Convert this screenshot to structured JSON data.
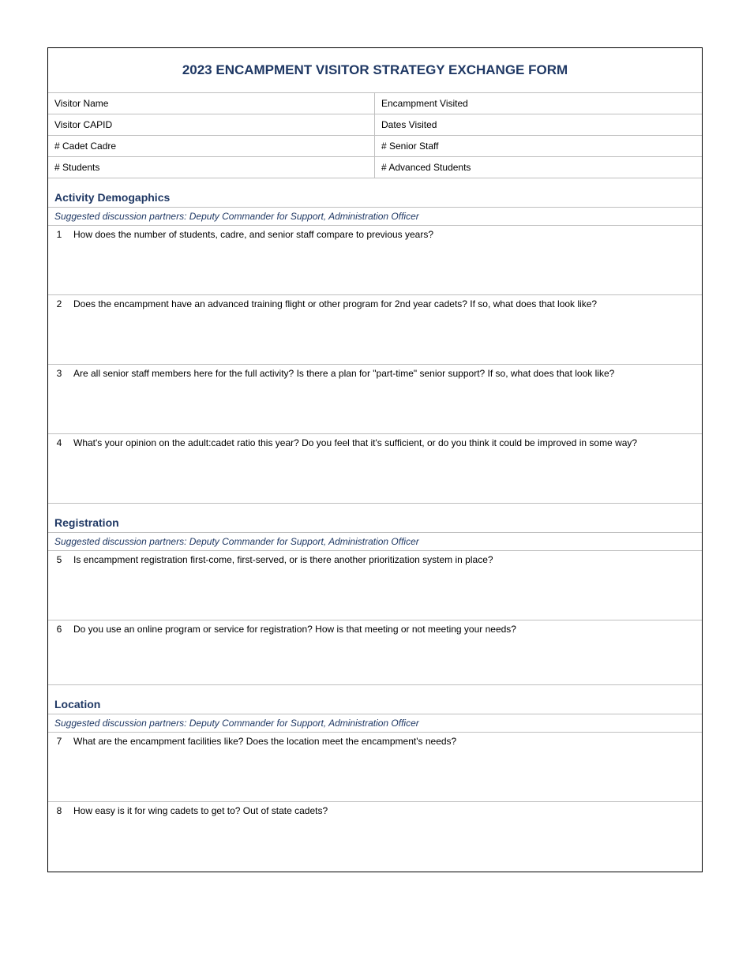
{
  "title": "2023 ENCAMPMENT VISITOR STRATEGY EXCHANGE FORM",
  "header": {
    "rows": [
      {
        "left": "Visitor Name",
        "right": "Encampment Visited"
      },
      {
        "left": "Visitor CAPID",
        "right": "Dates Visited"
      },
      {
        "left": "# Cadet Cadre",
        "right": "# Senior Staff"
      },
      {
        "left": "# Students",
        "right": "# Advanced Students"
      }
    ]
  },
  "sections": [
    {
      "title": "Activity Demogaphics",
      "subtitle": "Suggested discussion partners: Deputy Commander for Support, Administration Officer",
      "questions": [
        {
          "num": "1",
          "text": "How does the number of students, cadre, and senior staff compare to previous years?"
        },
        {
          "num": "2",
          "text": "Does the encampment have an advanced training flight or other program for 2nd year cadets?  If so, what does that look like?"
        },
        {
          "num": "3",
          "text": "Are all senior staff members here for the full activity?  Is there a plan for \"part-time\" senior support?  If so, what does that look like?"
        },
        {
          "num": "4",
          "text": "What's your opinion on the adult:cadet ratio this year?  Do you feel that it's sufficient, or do you think it could be improved in some way?"
        }
      ]
    },
    {
      "title": "Registration",
      "subtitle": "Suggested discussion partners: Deputy Commander for Support, Administration Officer",
      "questions": [
        {
          "num": "5",
          "text": "Is encampment registration  first-come, first-served, or is there another prioritization system in place?"
        },
        {
          "num": "6",
          "text": "Do you use an online program or service for registration?  How is that meeting or not meeting your needs?"
        }
      ]
    },
    {
      "title": "Location",
      "subtitle": "Suggested discussion partners: Deputy Commander for Support, Administration Officer",
      "questions": [
        {
          "num": "7",
          "text": "What are the encampment facilities like?  Does the location meet the encampment's needs?"
        },
        {
          "num": "8",
          "text": "How easy is it for wing cadets to get to? Out of state cadets?"
        }
      ]
    }
  ]
}
